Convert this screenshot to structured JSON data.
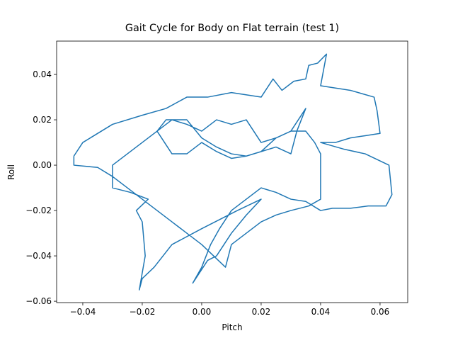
{
  "chart_data": {
    "type": "line",
    "title": "Gait Cycle for Body on Flat terrain (test 1)",
    "xlabel": "Pitch",
    "ylabel": "Roll",
    "xlim": [
      -0.0488,
      0.0693
    ],
    "ylim": [
      -0.0606,
      0.0547
    ],
    "xticks": [
      {
        "value": -0.04,
        "label": "−0.04"
      },
      {
        "value": -0.02,
        "label": "−0.02"
      },
      {
        "value": 0,
        "label": "0.00"
      },
      0.02,
      0.04,
      0.06
    ],
    "yticks": [
      {
        "value": -0.06,
        "label": "−0.06"
      },
      {
        "value": -0.04,
        "label": "−0.04"
      },
      {
        "value": -0.02,
        "label": "−0.02"
      },
      {
        "value": 0,
        "label": "0.00"
      },
      0.02,
      0.04
    ],
    "series": [
      {
        "color": "#1f77b4",
        "x": [
          -0.043,
          -0.04,
          -0.03,
          -0.02,
          -0.012,
          -0.005,
          0.002,
          0.01,
          0.02,
          0.024,
          0.027,
          0.031,
          0.035,
          0.036,
          0.039,
          0.042,
          0.041,
          0.04,
          0.045,
          0.05,
          0.058,
          0.059,
          0.06,
          0.055,
          0.05,
          0.045,
          0.04,
          0.048,
          0.055,
          0.063,
          0.064,
          0.062,
          0.056,
          0.05,
          0.044,
          0.04,
          0.035,
          0.03,
          0.025,
          0.02,
          0.015,
          0.01,
          0.006,
          0.003,
          0.0,
          -0.003,
          0.002,
          0.005,
          0.01,
          0.015,
          0.02,
          0.012,
          0.0,
          -0.01,
          -0.016,
          -0.02,
          -0.021,
          -0.019,
          -0.02,
          -0.022,
          -0.018,
          -0.024,
          -0.03,
          -0.03,
          -0.025,
          -0.02,
          -0.01,
          -0.005,
          0.0,
          0.005,
          0.01,
          0.015,
          0.02,
          0.025,
          0.03,
          0.035,
          0.032,
          0.03,
          0.025,
          0.02,
          0.015,
          0.01,
          0.005,
          0.0,
          -0.005,
          -0.01,
          -0.015,
          -0.012,
          -0.005,
          0.0,
          0.005,
          0.01,
          0.015,
          0.02,
          0.025,
          0.03,
          0.035,
          0.038,
          0.04,
          0.04,
          0.036,
          0.03,
          0.025,
          0.02,
          0.015,
          0.01,
          0.008,
          0.004,
          0.0,
          -0.005,
          -0.01,
          -0.015,
          -0.02,
          -0.025,
          -0.03,
          -0.035,
          -0.043,
          -0.043
        ],
        "y": [
          0.004,
          0.01,
          0.018,
          0.022,
          0.025,
          0.03,
          0.03,
          0.032,
          0.03,
          0.038,
          0.033,
          0.037,
          0.038,
          0.044,
          0.045,
          0.049,
          0.042,
          0.035,
          0.034,
          0.033,
          0.03,
          0.024,
          0.014,
          0.013,
          0.012,
          0.01,
          0.01,
          0.007,
          0.005,
          0.0,
          -0.013,
          -0.018,
          -0.018,
          -0.019,
          -0.019,
          -0.02,
          -0.016,
          -0.015,
          -0.012,
          -0.01,
          -0.015,
          -0.02,
          -0.028,
          -0.035,
          -0.045,
          -0.052,
          -0.042,
          -0.04,
          -0.03,
          -0.022,
          -0.015,
          -0.02,
          -0.028,
          -0.035,
          -0.045,
          -0.05,
          -0.055,
          -0.04,
          -0.025,
          -0.02,
          -0.015,
          -0.012,
          -0.01,
          0.0,
          0.005,
          0.01,
          0.02,
          0.018,
          0.015,
          0.02,
          0.018,
          0.02,
          0.01,
          0.012,
          0.015,
          0.025,
          0.015,
          0.005,
          0.008,
          0.006,
          0.004,
          0.003,
          0.006,
          0.01,
          0.005,
          0.005,
          0.015,
          0.02,
          0.02,
          0.012,
          0.008,
          0.005,
          0.004,
          0.006,
          0.012,
          0.015,
          0.015,
          0.01,
          0.005,
          -0.015,
          -0.018,
          -0.02,
          -0.022,
          -0.025,
          -0.03,
          -0.035,
          -0.045,
          -0.04,
          -0.035,
          -0.03,
          -0.025,
          -0.02,
          -0.015,
          -0.01,
          -0.005,
          -0.001,
          0.0,
          0.004
        ]
      }
    ]
  }
}
